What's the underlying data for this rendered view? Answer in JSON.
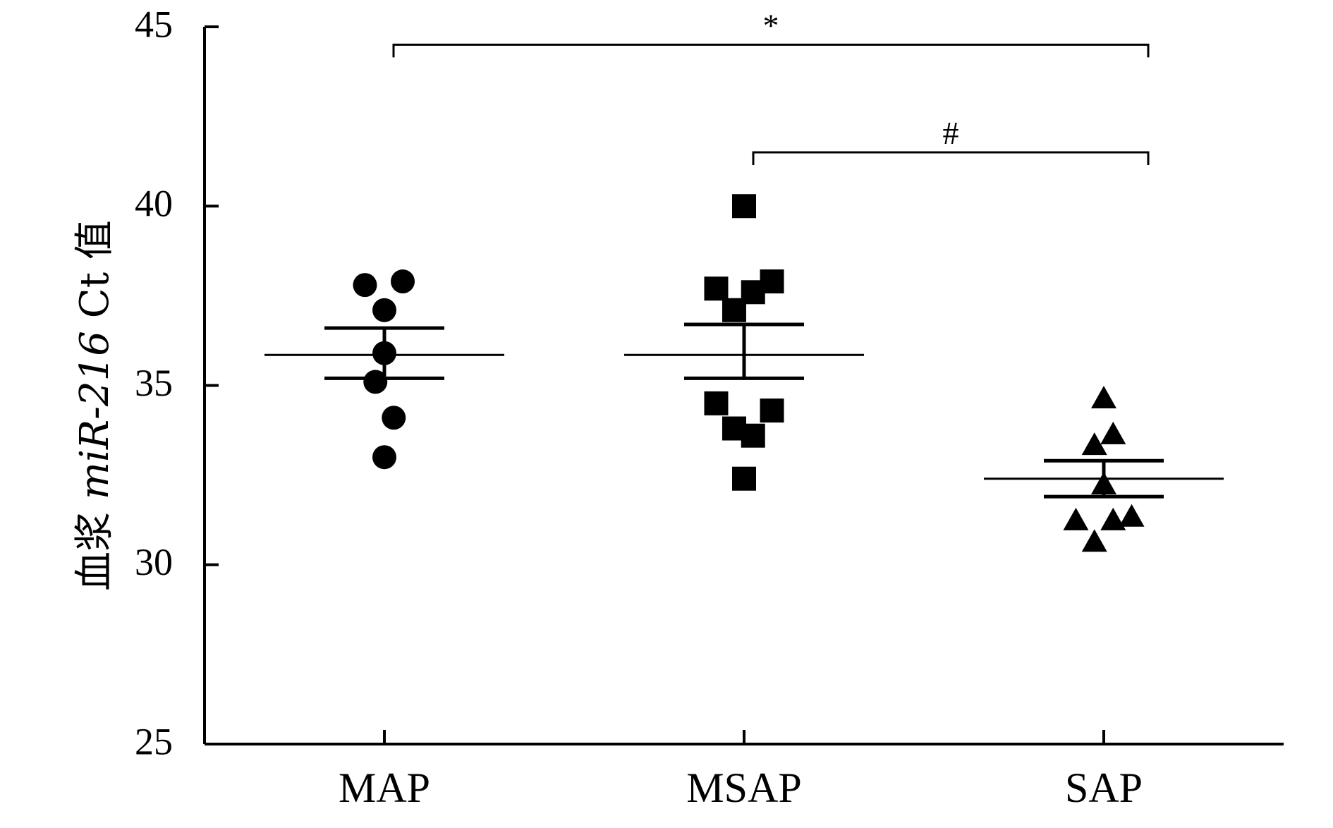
{
  "chart_data": {
    "type": "scatter",
    "title": "",
    "ylabel": "血浆 miR-216 Ct 值",
    "ylabel_parts": {
      "prefix": "血浆 ",
      "gene": "miR-216",
      "suffix": " Ct 值"
    },
    "xlabel": "",
    "ylim": [
      25,
      45
    ],
    "yticks": [
      25,
      30,
      35,
      40,
      45
    ],
    "categories": [
      "MAP",
      "MSAP",
      "SAP"
    ],
    "series": [
      {
        "category": "MAP",
        "marker": "circle",
        "points": [
          [
            -0.108,
            37.8
          ],
          [
            0.0,
            37.1
          ],
          [
            0.102,
            37.9
          ],
          [
            0.0,
            35.9
          ],
          [
            -0.05,
            35.1
          ],
          [
            0.052,
            34.1
          ],
          [
            0.0,
            33.0
          ]
        ],
        "mean": 35.85,
        "sem_upper": 36.6,
        "sem_lower": 35.2
      },
      {
        "category": "MSAP",
        "marker": "square",
        "points": [
          [
            0.0,
            40.0
          ],
          [
            -0.155,
            37.7
          ],
          [
            -0.055,
            37.1
          ],
          [
            0.05,
            37.6
          ],
          [
            0.155,
            37.9
          ],
          [
            -0.155,
            34.5
          ],
          [
            0.155,
            34.3
          ],
          [
            -0.055,
            33.8
          ],
          [
            0.05,
            33.6
          ],
          [
            0.0,
            32.4
          ]
        ],
        "mean": 35.85,
        "sem_upper": 36.7,
        "sem_lower": 35.2
      },
      {
        "category": "SAP",
        "marker": "triangle",
        "points": [
          [
            0.0,
            34.6
          ],
          [
            -0.052,
            33.3
          ],
          [
            0.052,
            33.6
          ],
          [
            0.0,
            32.2
          ],
          [
            -0.155,
            31.2
          ],
          [
            0.052,
            31.2
          ],
          [
            0.155,
            31.3
          ],
          [
            -0.052,
            30.6
          ]
        ],
        "mean": 32.4,
        "sem_upper": 32.9,
        "sem_lower": 31.9
      }
    ],
    "significance": [
      {
        "from": "MAP",
        "to": "SAP",
        "label": "*",
        "y": 44.5
      },
      {
        "from": "MSAP",
        "to": "SAP",
        "label": "#",
        "y": 41.5
      }
    ]
  }
}
